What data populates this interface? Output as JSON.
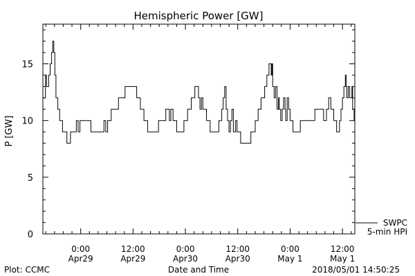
{
  "chart_data": {
    "type": "line",
    "title": "Hemispheric Power [GW]",
    "xlabel": "Date and Time",
    "ylabel": "P [GW]",
    "ylim": [
      0,
      18.5
    ],
    "yticks": [
      0,
      5,
      10,
      15
    ],
    "xlim": [
      "2018-04-28 15:20",
      "2018-05-01 14:50"
    ],
    "xticks": [
      {
        "t": "2018-04-29 00:00",
        "line1": "0:00",
        "line2": "Apr29"
      },
      {
        "t": "2018-04-29 12:00",
        "line1": "12:00",
        "line2": "Apr29"
      },
      {
        "t": "2018-04-30 00:00",
        "line1": "0:00",
        "line2": "Apr30"
      },
      {
        "t": "2018-04-30 12:00",
        "line1": "12:00",
        "line2": "Apr30"
      },
      {
        "t": "2018-05-01 00:00",
        "line1": "0:00",
        "line2": "May 1"
      },
      {
        "t": "2018-05-01 12:00",
        "line1": "12:00",
        "line2": "May 1"
      }
    ],
    "series": [
      {
        "name": "SWPC 5-min HPI",
        "color": "#000000",
        "step": true,
        "points": [
          [
            "2018-04-28 15:20",
            12
          ],
          [
            "2018-04-28 15:55",
            14
          ],
          [
            "2018-04-28 16:10",
            13
          ],
          [
            "2018-04-28 16:40",
            14
          ],
          [
            "2018-04-28 17:00",
            15
          ],
          [
            "2018-04-28 17:20",
            16
          ],
          [
            "2018-04-28 17:35",
            17
          ],
          [
            "2018-04-28 17:50",
            16
          ],
          [
            "2018-04-28 18:05",
            14
          ],
          [
            "2018-04-28 18:20",
            12
          ],
          [
            "2018-04-28 18:45",
            11
          ],
          [
            "2018-04-28 19:10",
            10
          ],
          [
            "2018-04-28 19:50",
            9
          ],
          [
            "2018-04-28 20:50",
            8
          ],
          [
            "2018-04-28 21:40",
            9
          ],
          [
            "2018-04-28 23:00",
            10
          ],
          [
            "2018-04-28 23:25",
            9
          ],
          [
            "2018-04-28 23:50",
            10
          ],
          [
            "2018-04-29 02:20",
            9
          ],
          [
            "2018-04-29 05:20",
            10
          ],
          [
            "2018-04-29 05:45",
            9
          ],
          [
            "2018-04-29 06:10",
            10
          ],
          [
            "2018-04-29 07:00",
            11
          ],
          [
            "2018-04-29 08:40",
            12
          ],
          [
            "2018-04-29 10:10",
            13
          ],
          [
            "2018-04-29 12:50",
            12
          ],
          [
            "2018-04-29 13:40",
            11
          ],
          [
            "2018-04-29 14:30",
            10
          ],
          [
            "2018-04-29 15:20",
            9
          ],
          [
            "2018-04-29 17:50",
            10
          ],
          [
            "2018-04-29 19:30",
            11
          ],
          [
            "2018-04-29 20:20",
            10
          ],
          [
            "2018-04-29 20:40",
            11
          ],
          [
            "2018-04-29 21:10",
            10
          ],
          [
            "2018-04-29 22:00",
            9
          ],
          [
            "2018-04-29 23:40",
            10
          ],
          [
            "2018-04-30 00:30",
            11
          ],
          [
            "2018-04-30 01:20",
            12
          ],
          [
            "2018-04-30 02:10",
            13
          ],
          [
            "2018-04-30 03:00",
            12
          ],
          [
            "2018-04-30 03:20",
            11
          ],
          [
            "2018-04-30 03:40",
            12
          ],
          [
            "2018-04-30 04:00",
            11
          ],
          [
            "2018-04-30 04:50",
            10
          ],
          [
            "2018-04-30 05:40",
            9
          ],
          [
            "2018-04-30 07:40",
            10
          ],
          [
            "2018-04-30 08:20",
            11
          ],
          [
            "2018-04-30 08:40",
            12
          ],
          [
            "2018-04-30 09:00",
            13
          ],
          [
            "2018-04-30 09:20",
            11
          ],
          [
            "2018-04-30 09:40",
            10
          ],
          [
            "2018-04-30 10:00",
            9
          ],
          [
            "2018-04-30 10:20",
            10
          ],
          [
            "2018-04-30 10:40",
            11
          ],
          [
            "2018-04-30 11:00",
            9
          ],
          [
            "2018-04-30 11:30",
            10
          ],
          [
            "2018-04-30 11:50",
            9
          ],
          [
            "2018-04-30 12:40",
            8
          ],
          [
            "2018-04-30 15:00",
            9
          ],
          [
            "2018-04-30 16:00",
            10
          ],
          [
            "2018-04-30 16:40",
            11
          ],
          [
            "2018-04-30 17:20",
            12
          ],
          [
            "2018-04-30 18:10",
            13
          ],
          [
            "2018-04-30 18:40",
            14
          ],
          [
            "2018-04-30 19:10",
            15
          ],
          [
            "2018-04-30 19:40",
            14
          ],
          [
            "2018-04-30 19:50",
            15
          ],
          [
            "2018-04-30 20:00",
            13
          ],
          [
            "2018-04-30 20:20",
            12
          ],
          [
            "2018-04-30 20:40",
            13
          ],
          [
            "2018-04-30 21:00",
            11
          ],
          [
            "2018-04-30 21:20",
            12
          ],
          [
            "2018-04-30 21:30",
            11
          ],
          [
            "2018-04-30 21:50",
            10
          ],
          [
            "2018-04-30 22:10",
            11
          ],
          [
            "2018-04-30 22:30",
            12
          ],
          [
            "2018-04-30 22:50",
            11
          ],
          [
            "2018-04-30 23:00",
            10
          ],
          [
            "2018-04-30 23:20",
            12
          ],
          [
            "2018-04-30 23:40",
            11
          ],
          [
            "2018-05-01 00:00",
            10
          ],
          [
            "2018-05-01 00:40",
            9
          ],
          [
            "2018-05-01 02:20",
            10
          ],
          [
            "2018-05-01 05:40",
            11
          ],
          [
            "2018-05-01 07:40",
            10
          ],
          [
            "2018-05-01 08:20",
            11
          ],
          [
            "2018-05-01 08:50",
            12
          ],
          [
            "2018-05-01 09:20",
            11
          ],
          [
            "2018-05-01 10:00",
            10
          ],
          [
            "2018-05-01 10:40",
            9
          ],
          [
            "2018-05-01 11:20",
            10
          ],
          [
            "2018-05-01 11:40",
            11
          ],
          [
            "2018-05-01 12:00",
            12
          ],
          [
            "2018-05-01 12:20",
            13
          ],
          [
            "2018-05-01 12:40",
            14
          ],
          [
            "2018-05-01 12:50",
            13
          ],
          [
            "2018-05-01 13:00",
            12
          ],
          [
            "2018-05-01 13:20",
            13
          ],
          [
            "2018-05-01 13:40",
            12
          ],
          [
            "2018-05-01 14:10",
            13
          ],
          [
            "2018-05-01 14:20",
            11
          ],
          [
            "2018-05-01 14:40",
            10
          ]
        ]
      }
    ],
    "legend": {
      "position": "bottom-right",
      "line1": "SWPC",
      "line2": "5-min HPI"
    }
  },
  "footer": {
    "left": "Plot: CCMC",
    "right": "2018/05/01 14:50:25"
  }
}
